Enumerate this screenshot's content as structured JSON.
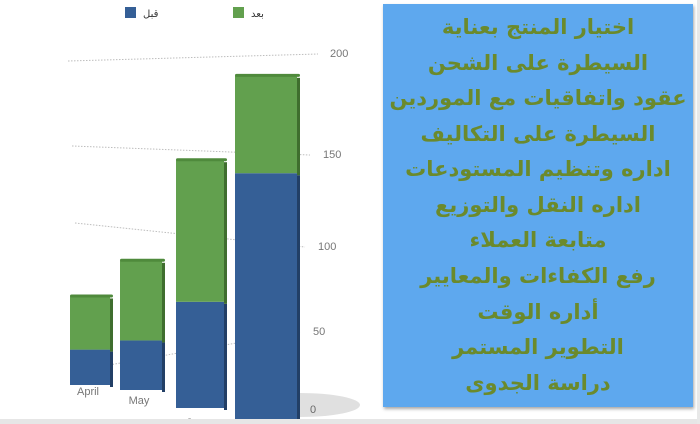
{
  "chart_data": {
    "type": "bar",
    "stacked": true,
    "categories": [
      "April",
      "May",
      "June",
      ""
    ],
    "series": [
      {
        "name": "قبل",
        "values": [
          20,
          28,
          60,
          140
        ],
        "color": "#355f96"
      },
      {
        "name": "بعد",
        "values": [
          30,
          45,
          80,
          55
        ],
        "color": "#62a04e"
      }
    ],
    "yticks": [
      0,
      50,
      100,
      150,
      200
    ],
    "ylim": [
      0,
      200
    ],
    "grid": true,
    "legend": "top",
    "yaxis_side": "right"
  },
  "panel": {
    "lines": [
      "اختيار المنتج بعناية",
      "السيطرة على الشحن",
      "عقود واتفاقيات مع الموردين",
      "السيطرة على التكاليف",
      "اداره وتنظيم المستودعات",
      "اداره النقل والتوزيع",
      "متابعة العملاء",
      "رفع الكفاءات والمعايير",
      "أداره الوقت",
      "التطوير المستمر",
      "دراسة الجدوى"
    ],
    "background": "#5ea8ee",
    "text_color": "#6b8a2c"
  }
}
